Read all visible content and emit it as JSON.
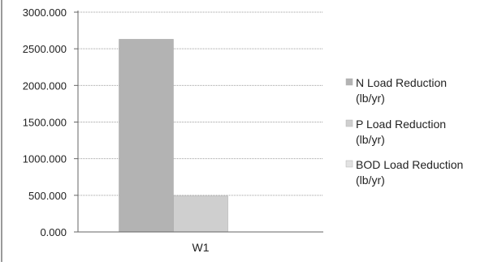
{
  "chart_data": {
    "type": "bar",
    "categories": [
      "W1"
    ],
    "series": [
      {
        "name": "N Load Reduction (lb/yr)",
        "values": [
          2630
        ],
        "color": "#b3b3b3"
      },
      {
        "name": "P Load Reduction (lb/yr)",
        "values": [
          490
        ],
        "color": "#cfcfcf"
      },
      {
        "name": "BOD Load Reduction (lb/yr)",
        "values": [
          0
        ],
        "color": "#e2e2e2"
      }
    ],
    "y_ticks": [
      "0.000",
      "500.000",
      "1000.000",
      "1500.000",
      "2000.000",
      "2500.000",
      "3000.000"
    ],
    "ylim": [
      0,
      3000
    ],
    "grid": true,
    "legend_position": "right",
    "title": "",
    "xlabel": "",
    "ylabel": ""
  }
}
